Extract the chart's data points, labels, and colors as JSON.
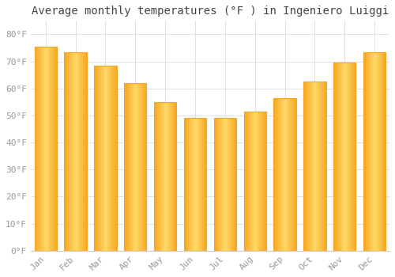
{
  "title": "Average monthly temperatures (°F ) in Ingeniero Luiggi",
  "months": [
    "Jan",
    "Feb",
    "Mar",
    "Apr",
    "May",
    "Jun",
    "Jul",
    "Aug",
    "Sep",
    "Oct",
    "Nov",
    "Dec"
  ],
  "temperatures": [
    75.5,
    73.5,
    68.5,
    62.0,
    55.0,
    49.0,
    49.0,
    51.5,
    56.5,
    62.5,
    69.5,
    73.5
  ],
  "bar_color_center": "#FFD966",
  "bar_color_edge": "#F5A623",
  "background_color": "#FFFFFF",
  "plot_bg_color": "#FFFFFF",
  "grid_color": "#E0E0E0",
  "ylim": [
    0,
    85
  ],
  "yticks": [
    0,
    10,
    20,
    30,
    40,
    50,
    60,
    70,
    80
  ],
  "title_fontsize": 10,
  "tick_fontsize": 8,
  "tick_color": "#999999",
  "title_color": "#444444",
  "bar_width": 0.75
}
